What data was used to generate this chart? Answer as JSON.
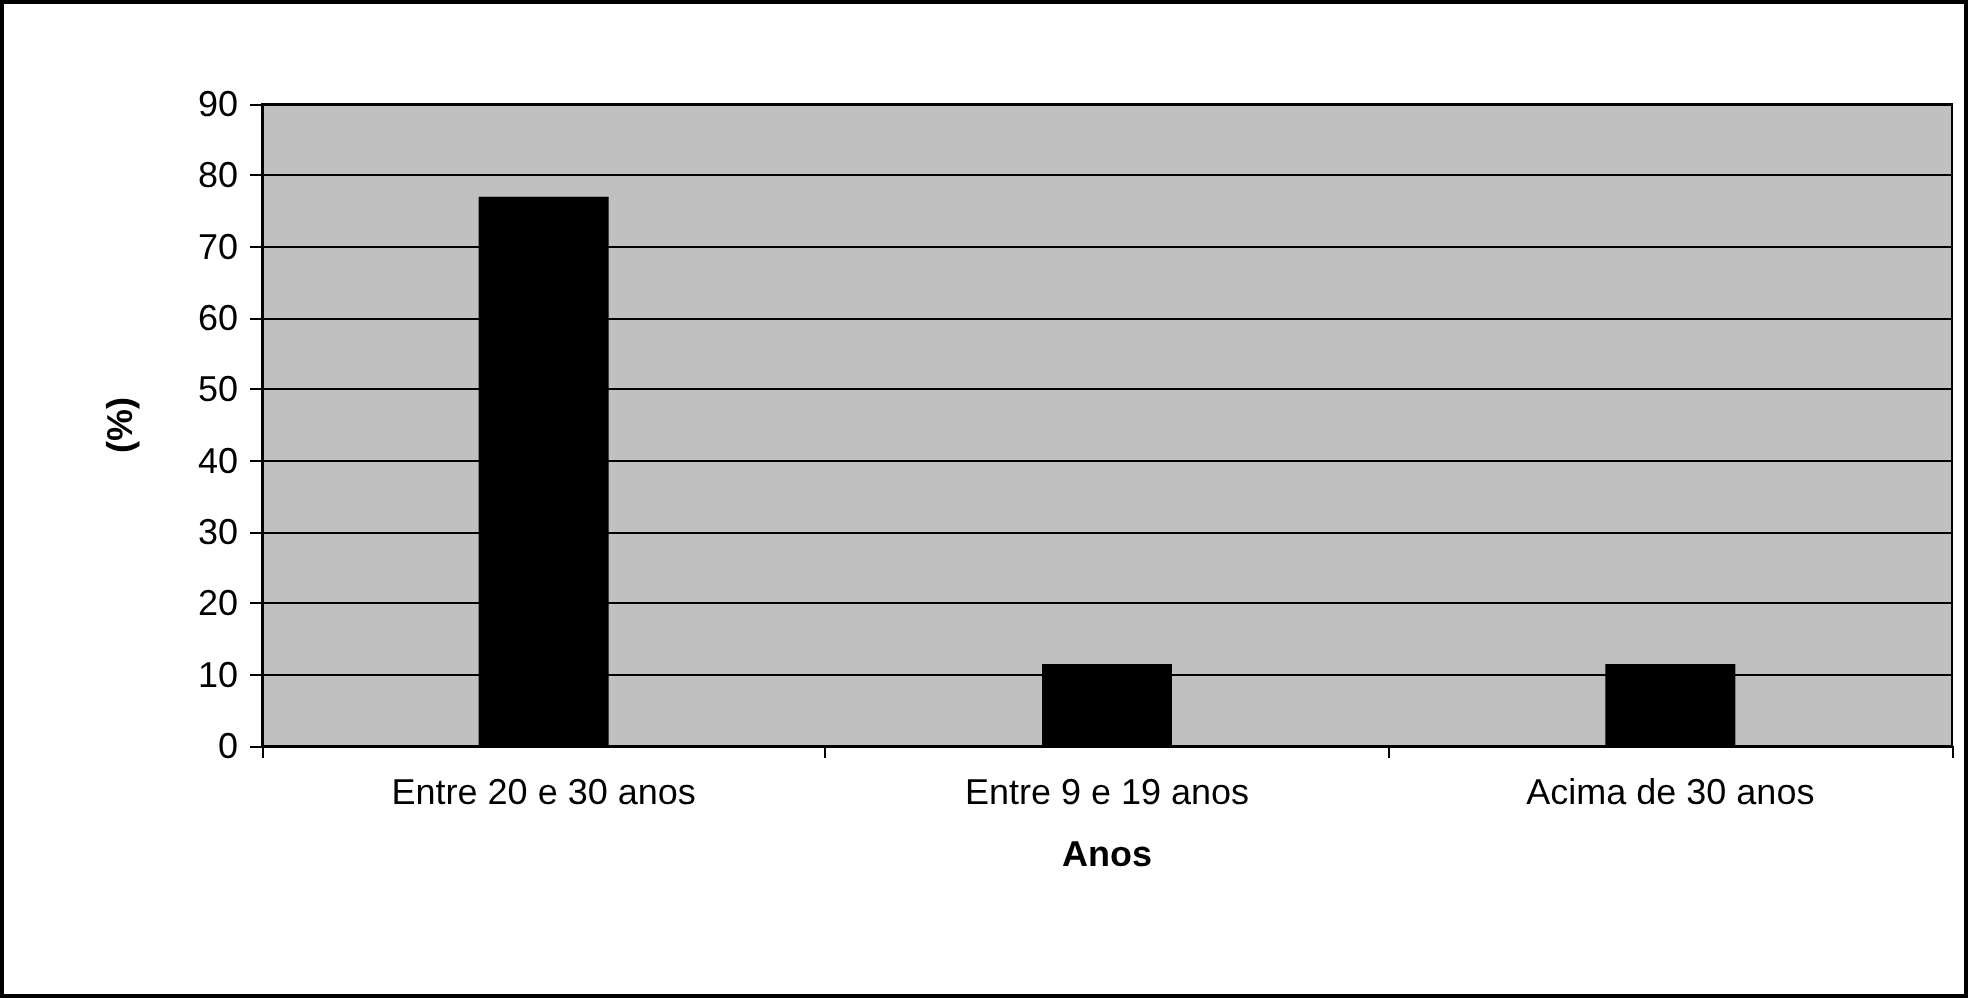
{
  "chart_data": {
    "type": "bar",
    "xlabel": "Anos",
    "ylabel": "(%)",
    "categories": [
      "Entre 20 e 30 anos",
      "Entre 9 e 19 anos",
      "Acima de 30 anos"
    ],
    "values": [
      77,
      11.5,
      11.5
    ],
    "color": "#000000",
    "ylim": [
      0,
      90
    ],
    "yticks": [
      0,
      10,
      20,
      30,
      40,
      50,
      60,
      70,
      80,
      90
    ],
    "grid": "y"
  }
}
